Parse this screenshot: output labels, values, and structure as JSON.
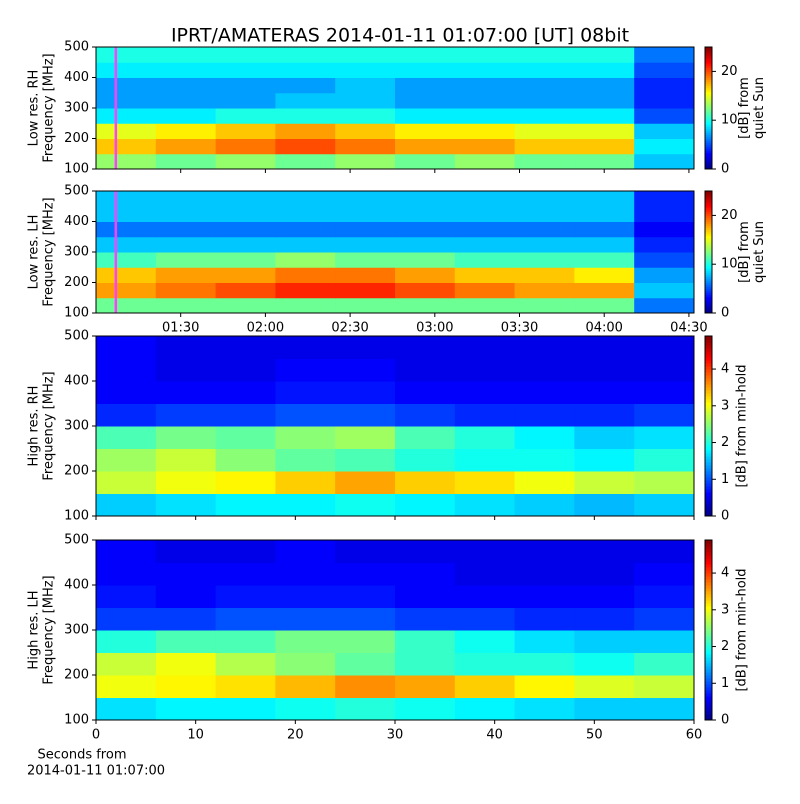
{
  "chart_data": [
    {
      "type": "heatmap",
      "title": "IPRT/AMATERAS 2014-01-11 01:07:00 [UT]   08bit",
      "ylabel": [
        "Low res. RH",
        "Frequency [MHz]"
      ],
      "colorbar_label": [
        "[dB] from",
        "quiet Sun"
      ],
      "colormap": "jet",
      "xlim": [
        1.0,
        4.53
      ],
      "xticks": [
        1.5,
        2.0,
        2.5,
        3.0,
        3.5,
        4.0,
        4.5
      ],
      "ylim": [
        100,
        500
      ],
      "yticks": [
        100,
        200,
        300,
        400,
        500
      ],
      "clim": [
        0,
        25
      ],
      "cticks": [
        0,
        10,
        20
      ],
      "marker": {
        "x": 1.117,
        "color": "#ff40ff"
      },
      "x_edges": [
        1.0,
        1.353,
        1.706,
        2.059,
        2.412,
        2.765,
        3.118,
        3.471,
        3.824,
        4.177,
        4.53
      ],
      "y_edges": [
        100,
        150,
        200,
        250,
        300,
        350,
        400,
        450,
        500
      ],
      "z": [
        [
          13,
          12,
          13,
          12,
          13,
          12,
          13,
          12,
          12,
          8
        ],
        [
          17,
          18,
          19,
          20,
          19,
          18,
          18,
          17,
          17,
          9
        ],
        [
          15,
          16,
          17,
          18,
          17,
          16,
          16,
          15,
          15,
          8
        ],
        [
          9,
          9,
          10,
          10,
          10,
          9,
          9,
          9,
          9,
          5
        ],
        [
          7,
          7,
          7,
          8,
          8,
          7,
          7,
          7,
          7,
          4
        ],
        [
          7,
          7,
          7,
          7,
          8,
          7,
          7,
          7,
          7,
          4
        ],
        [
          9,
          9,
          9,
          9,
          9,
          9,
          9,
          9,
          9,
          5
        ],
        [
          10,
          10,
          10,
          10,
          10,
          10,
          10,
          10,
          10,
          6
        ]
      ]
    },
    {
      "type": "heatmap",
      "ylabel": [
        "Low res. LH",
        "Frequency [MHz]"
      ],
      "colorbar_label": [
        "[dB] from",
        "quiet Sun"
      ],
      "colormap": "jet",
      "xlim": [
        1.0,
        4.53
      ],
      "xticks": [
        {
          "value": 1.5,
          "label": "01:30"
        },
        {
          "value": 2.0,
          "label": "02:00"
        },
        {
          "value": 2.5,
          "label": "02:30"
        },
        {
          "value": 3.0,
          "label": "03:00"
        },
        {
          "value": 3.5,
          "label": "03:30"
        },
        {
          "value": 4.0,
          "label": "04:00"
        },
        {
          "value": 4.5,
          "label": "04:30"
        }
      ],
      "ylim": [
        100,
        500
      ],
      "yticks": [
        100,
        200,
        300,
        400,
        500
      ],
      "clim": [
        0,
        25
      ],
      "cticks": [
        0,
        10,
        20
      ],
      "marker": {
        "x": 1.117,
        "color": "#ff40ff"
      },
      "x_edges": [
        1.0,
        1.353,
        1.706,
        2.059,
        2.412,
        2.765,
        3.118,
        3.471,
        3.824,
        4.177,
        4.53
      ],
      "y_edges": [
        100,
        150,
        200,
        250,
        300,
        350,
        400,
        450,
        500
      ],
      "z": [
        [
          12,
          12,
          12,
          12,
          12,
          12,
          12,
          12,
          12,
          6
        ],
        [
          18,
          19,
          20,
          21,
          21,
          20,
          19,
          18,
          18,
          8
        ],
        [
          17,
          18,
          18,
          19,
          19,
          18,
          17,
          17,
          16,
          7
        ],
        [
          11,
          12,
          12,
          13,
          12,
          12,
          11,
          11,
          11,
          5
        ],
        [
          8,
          8,
          8,
          8,
          8,
          8,
          8,
          8,
          8,
          4
        ],
        [
          6,
          6,
          6,
          6,
          6,
          6,
          6,
          6,
          6,
          3
        ],
        [
          8,
          8,
          8,
          8,
          8,
          8,
          8,
          8,
          8,
          4
        ],
        [
          8,
          8,
          8,
          8,
          8,
          8,
          8,
          8,
          8,
          4
        ]
      ]
    },
    {
      "type": "heatmap",
      "ylabel": [
        "High res. RH",
        "Frequency [MHz]"
      ],
      "colorbar_label": [
        "[dB] from min-hold"
      ],
      "colormap": "jet",
      "xlim": [
        0,
        60
      ],
      "xticks": [
        0,
        10,
        20,
        30,
        40,
        50,
        60
      ],
      "ylim": [
        100,
        500
      ],
      "yticks": [
        100,
        200,
        300,
        400,
        500
      ],
      "clim": [
        0,
        4.9
      ],
      "cticks": [
        0,
        1,
        2,
        3,
        4
      ],
      "x_edges": [
        0,
        6,
        12,
        18,
        24,
        30,
        36,
        42,
        48,
        54,
        60
      ],
      "y_edges": [
        100,
        150,
        200,
        250,
        300,
        350,
        400,
        450,
        500
      ],
      "z": [
        [
          1.6,
          1.7,
          1.8,
          1.8,
          1.9,
          1.8,
          1.7,
          1.6,
          1.5,
          1.6
        ],
        [
          2.8,
          3.0,
          3.1,
          3.3,
          3.5,
          3.3,
          3.2,
          3.0,
          2.8,
          2.7
        ],
        [
          2.6,
          2.8,
          2.5,
          2.3,
          2.2,
          2.0,
          1.9,
          1.9,
          1.8,
          2.0
        ],
        [
          2.2,
          2.4,
          2.3,
          2.5,
          2.6,
          2.2,
          2.0,
          1.8,
          1.6,
          1.7
        ],
        [
          0.8,
          0.9,
          0.9,
          1.0,
          1.0,
          0.9,
          0.8,
          0.8,
          0.8,
          0.9
        ],
        [
          0.6,
          0.6,
          0.6,
          0.7,
          0.7,
          0.6,
          0.6,
          0.6,
          0.6,
          0.6
        ],
        [
          0.6,
          0.5,
          0.5,
          0.6,
          0.6,
          0.5,
          0.5,
          0.5,
          0.5,
          0.5
        ],
        [
          0.6,
          0.5,
          0.5,
          0.5,
          0.5,
          0.5,
          0.5,
          0.5,
          0.5,
          0.5
        ]
      ]
    },
    {
      "type": "heatmap",
      "ylabel": [
        "High res. LH",
        "Frequency [MHz]"
      ],
      "colorbar_label": [
        "[dB] from min-hold"
      ],
      "colormap": "jet",
      "xlabel": [
        "Seconds from",
        "2014-01-11 01:07:00"
      ],
      "xlim": [
        0,
        60
      ],
      "xticks": [
        0,
        10,
        20,
        30,
        40,
        50,
        60
      ],
      "ylim": [
        100,
        500
      ],
      "yticks": [
        100,
        200,
        300,
        400,
        500
      ],
      "clim": [
        0,
        4.9
      ],
      "cticks": [
        0,
        1,
        2,
        3,
        4
      ],
      "x_edges": [
        0,
        6,
        12,
        18,
        24,
        30,
        36,
        42,
        48,
        54,
        60
      ],
      "y_edges": [
        100,
        150,
        200,
        250,
        300,
        350,
        400,
        450,
        500
      ],
      "z": [
        [
          1.7,
          1.8,
          1.8,
          1.9,
          2.0,
          1.9,
          1.8,
          1.7,
          1.6,
          1.6
        ],
        [
          3.0,
          3.1,
          3.2,
          3.4,
          3.6,
          3.5,
          3.3,
          3.1,
          2.9,
          2.8
        ],
        [
          2.8,
          3.0,
          2.7,
          2.5,
          2.3,
          2.1,
          2.0,
          2.0,
          1.9,
          2.1
        ],
        [
          2.0,
          2.2,
          2.2,
          2.4,
          2.4,
          2.1,
          1.9,
          1.7,
          1.6,
          1.6
        ],
        [
          0.9,
          0.9,
          1.0,
          1.0,
          1.0,
          0.9,
          0.9,
          0.8,
          0.8,
          0.9
        ],
        [
          0.7,
          0.6,
          0.7,
          0.7,
          0.7,
          0.6,
          0.6,
          0.6,
          0.6,
          0.7
        ],
        [
          0.6,
          0.6,
          0.6,
          0.6,
          0.6,
          0.6,
          0.5,
          0.5,
          0.5,
          0.6
        ],
        [
          0.6,
          0.5,
          0.5,
          0.6,
          0.5,
          0.5,
          0.5,
          0.5,
          0.5,
          0.5
        ]
      ]
    }
  ]
}
